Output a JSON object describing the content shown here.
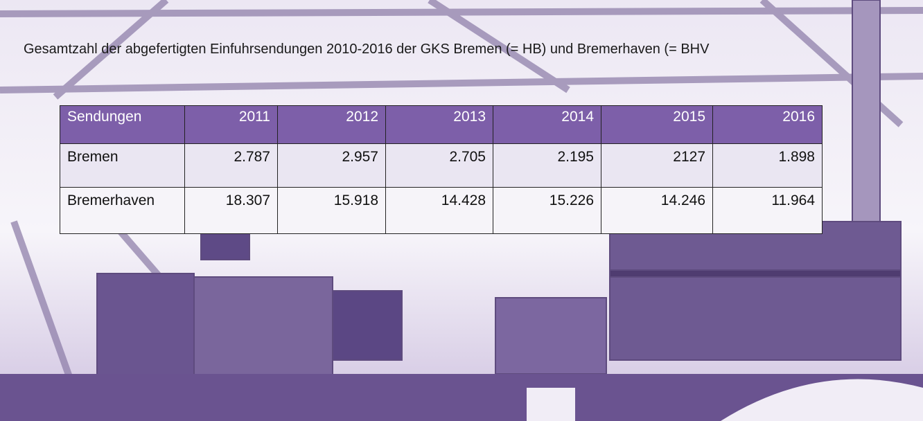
{
  "header": {
    "title": "Gesamtzahl der abgefertigten Einfuhrsendungen 2010-2016 der GKS Bremen (= HB) und Bremerhaven (= BHV"
  },
  "table": {
    "columns": [
      "Sendungen",
      "2011",
      "2012",
      "2013",
      "2014",
      "2015",
      "2016"
    ],
    "rows": [
      [
        "Bremen",
        "2.787",
        "2.957",
        "2.705",
        "2.195",
        "2127",
        "1.898"
      ],
      [
        "Bremerhaven",
        "18.307",
        "15.918",
        "14.428",
        "15.226",
        "14.246",
        "11.964"
      ]
    ]
  }
}
